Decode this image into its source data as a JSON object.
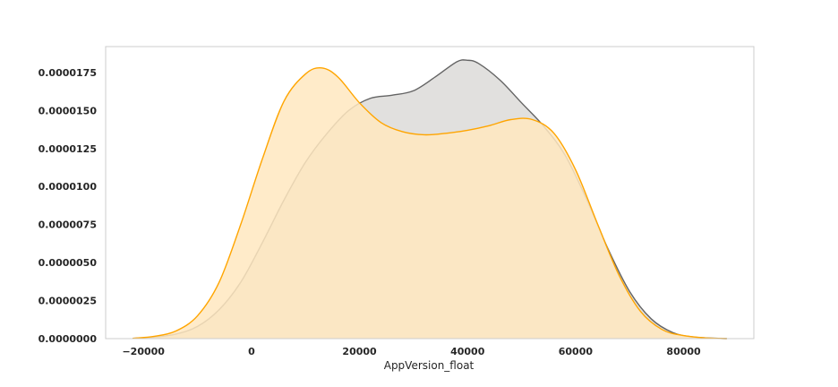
{
  "chart_data": {
    "type": "area",
    "title": "",
    "xlabel": "AppVersion_float",
    "ylabel": "",
    "xlim": [
      -27000,
      93000
    ],
    "ylim": [
      0,
      1.92e-05
    ],
    "grid": false,
    "legend": false,
    "x_ticks": [
      -20000,
      0,
      20000,
      40000,
      60000,
      80000
    ],
    "x_tick_labels": [
      "−20000",
      "0",
      "20000",
      "40000",
      "60000",
      "80000"
    ],
    "y_ticks": [
      0,
      2.5e-06,
      5e-06,
      7.5e-06,
      1e-05,
      1.25e-05,
      1.5e-05,
      1.75e-05
    ],
    "y_tick_labels": [
      "0.0000000",
      "0.0000025",
      "0.0000050",
      "0.0000075",
      "0.0000100",
      "0.0000125",
      "0.0000150",
      "0.0000175"
    ],
    "series": [
      {
        "color": "#646464",
        "fill": "#dcdbd8",
        "points": [
          [
            -22000,
            2e-08
          ],
          [
            -18000,
            1e-07
          ],
          [
            -14000,
            3e-07
          ],
          [
            -10000,
            8e-07
          ],
          [
            -6000,
            1.9e-06
          ],
          [
            -2000,
            3.7e-06
          ],
          [
            2000,
            6.3e-06
          ],
          [
            6000,
            9.1e-06
          ],
          [
            10000,
            1.16e-05
          ],
          [
            14000,
            1.35e-05
          ],
          [
            18000,
            1.5e-05
          ],
          [
            22000,
            1.58e-05
          ],
          [
            26000,
            1.6e-05
          ],
          [
            30000,
            1.63e-05
          ],
          [
            34000,
            1.72e-05
          ],
          [
            38000,
            1.82e-05
          ],
          [
            40000,
            1.83e-05
          ],
          [
            42000,
            1.81e-05
          ],
          [
            46000,
            1.7e-05
          ],
          [
            50000,
            1.55e-05
          ],
          [
            54000,
            1.4e-05
          ],
          [
            58000,
            1.21e-05
          ],
          [
            62000,
            9.2e-06
          ],
          [
            66000,
            5.9e-06
          ],
          [
            70000,
            3.1e-06
          ],
          [
            74000,
            1.3e-06
          ],
          [
            78000,
            4e-07
          ],
          [
            82000,
            1e-07
          ],
          [
            88000,
            0.0
          ]
        ]
      },
      {
        "color": "#ffa500",
        "fill": "#ffe8c0",
        "points": [
          [
            -22000,
            2e-08
          ],
          [
            -18000,
            1.5e-07
          ],
          [
            -14000,
            5e-07
          ],
          [
            -10000,
            1.5e-06
          ],
          [
            -6000,
            3.7e-06
          ],
          [
            -2000,
            7.5e-06
          ],
          [
            2000,
            1.18e-05
          ],
          [
            6000,
            1.56e-05
          ],
          [
            10000,
            1.74e-05
          ],
          [
            13000,
            1.78e-05
          ],
          [
            16000,
            1.72e-05
          ],
          [
            20000,
            1.55e-05
          ],
          [
            24000,
            1.42e-05
          ],
          [
            28000,
            1.36e-05
          ],
          [
            32000,
            1.34e-05
          ],
          [
            36000,
            1.35e-05
          ],
          [
            40000,
            1.37e-05
          ],
          [
            44000,
            1.4e-05
          ],
          [
            48000,
            1.44e-05
          ],
          [
            52000,
            1.44e-05
          ],
          [
            56000,
            1.35e-05
          ],
          [
            60000,
            1.11e-05
          ],
          [
            64000,
            7.6e-06
          ],
          [
            68000,
            4.2e-06
          ],
          [
            72000,
            1.8e-06
          ],
          [
            76000,
            6e-07
          ],
          [
            80000,
            2e-07
          ],
          [
            84000,
            5e-08
          ],
          [
            88000,
            0.0
          ]
        ]
      }
    ]
  }
}
